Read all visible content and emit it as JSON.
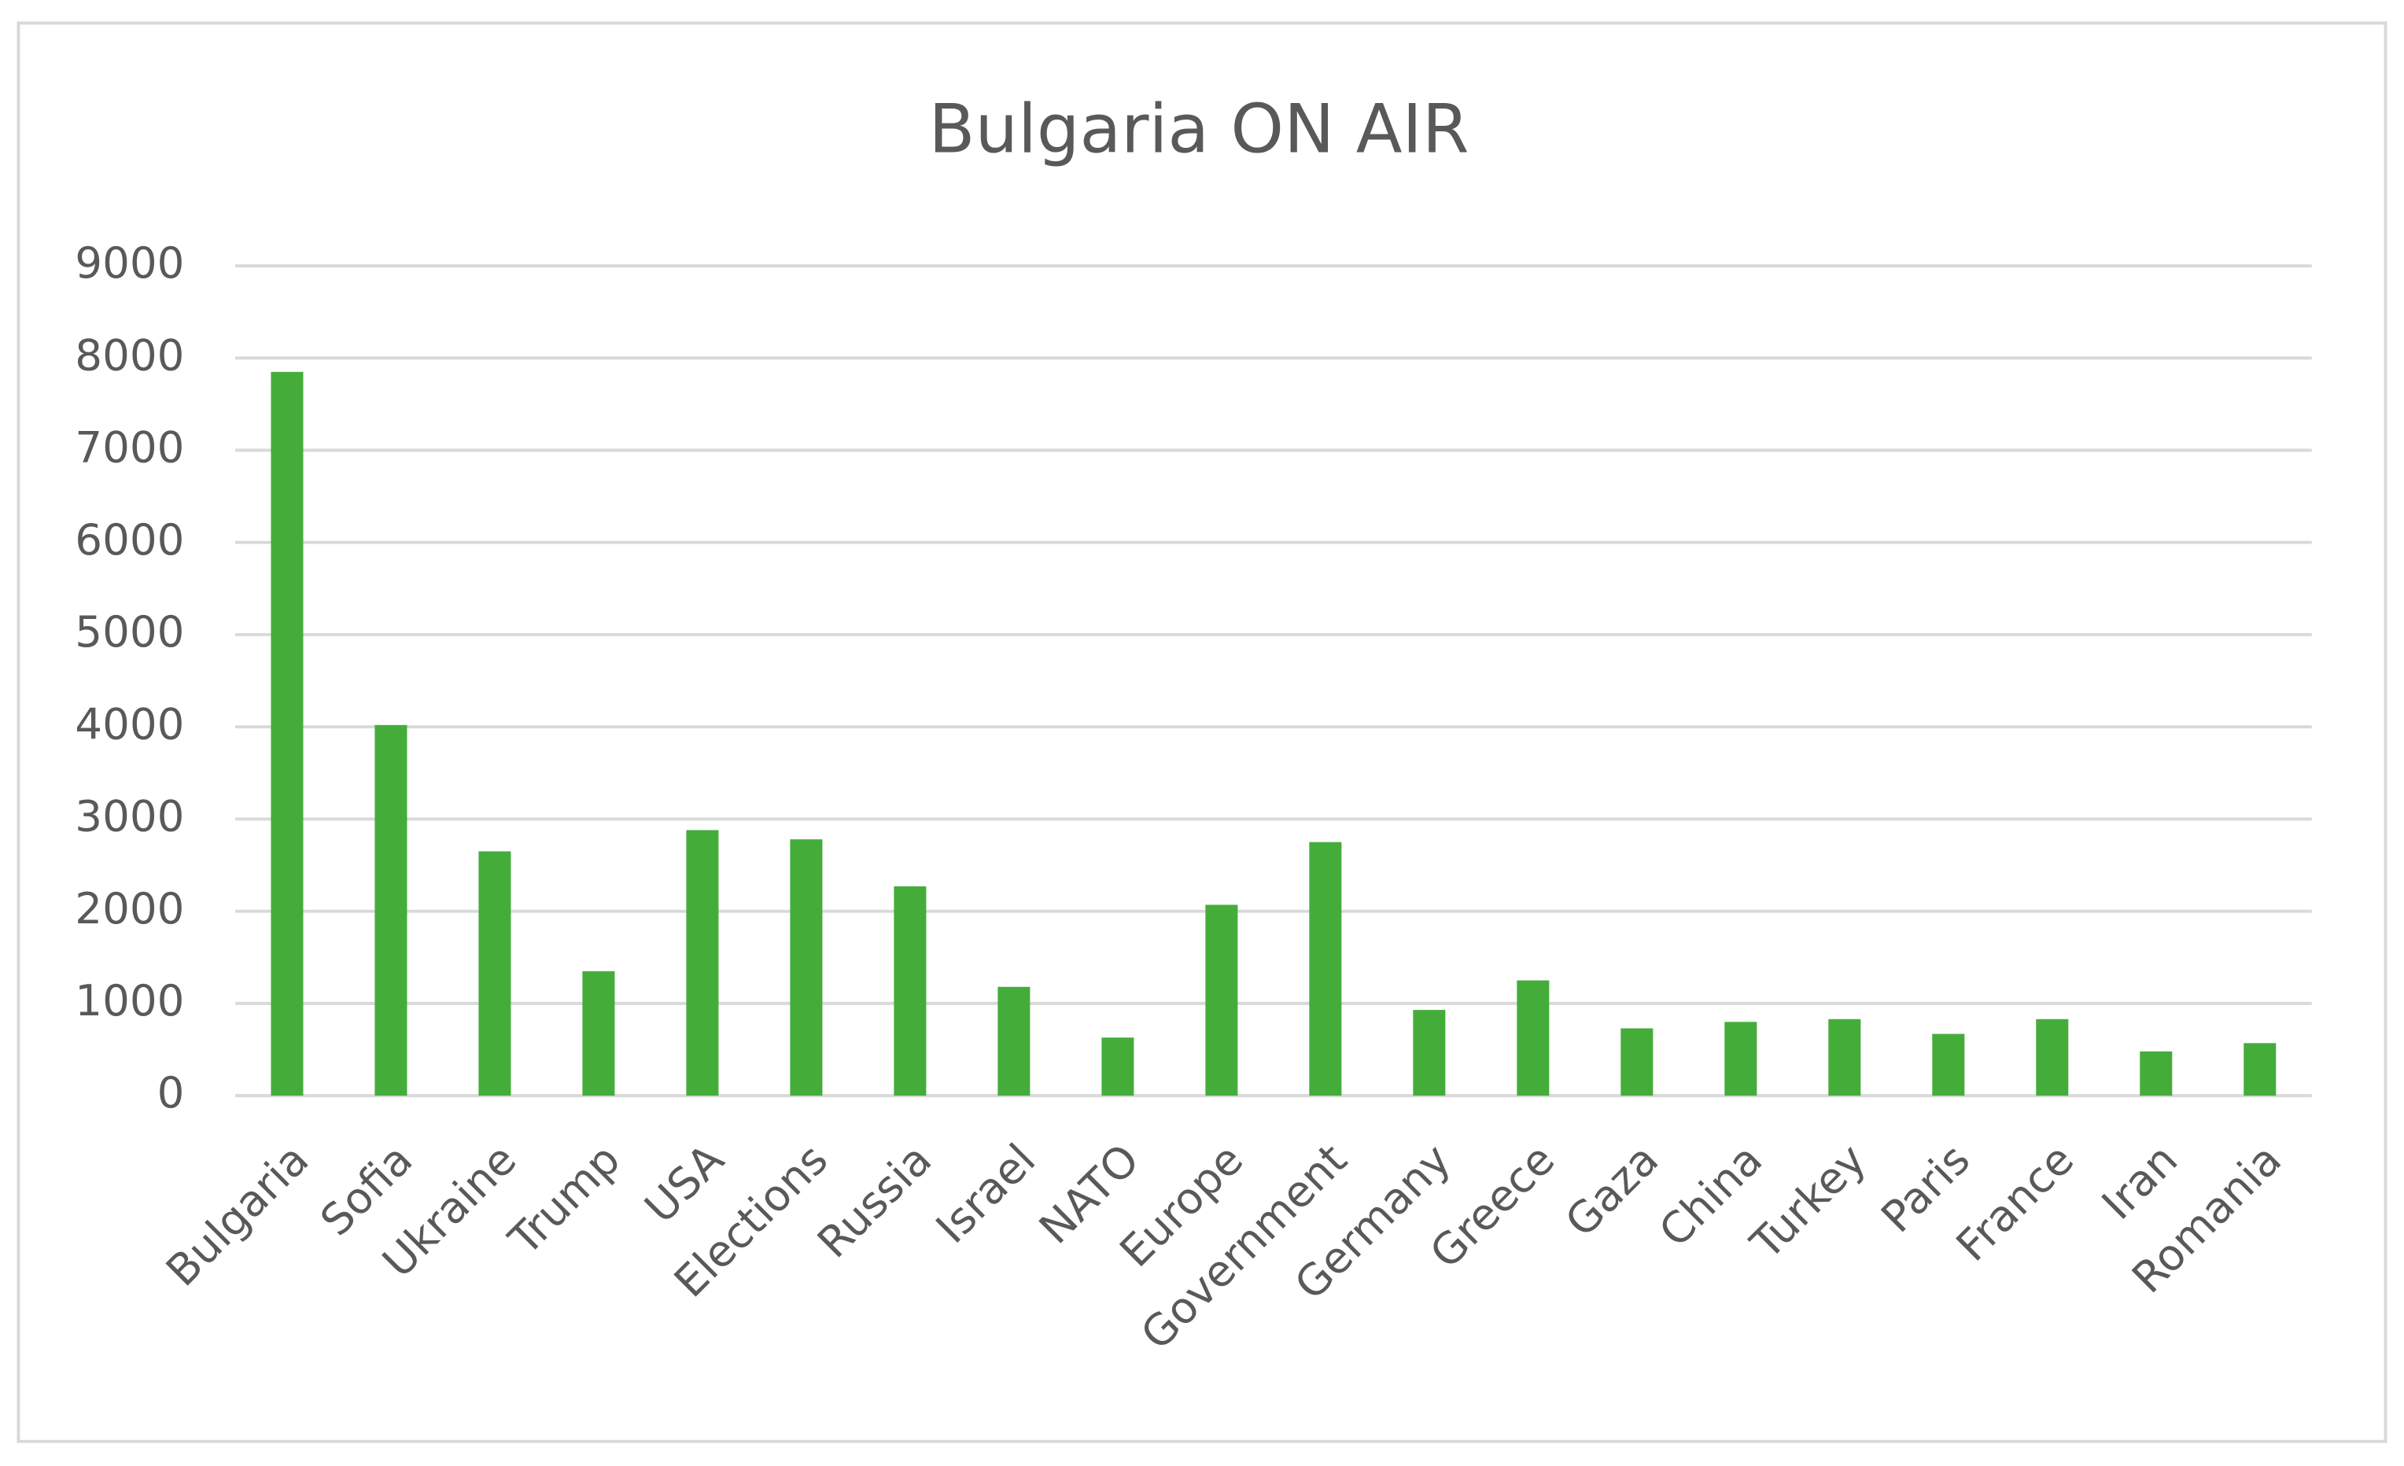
{
  "chart_data": {
    "type": "bar",
    "title": "Bulgaria ON AIR",
    "categories": [
      "Bulgaria",
      "Sofia",
      "Ukraine",
      "Trump",
      "USA",
      "Elections",
      "Russia",
      "Israel",
      "NATO",
      "Europe",
      "Government",
      "Germany",
      "Greece",
      "Gaza",
      "China",
      "Turkey",
      "Paris",
      "France",
      "Iran",
      "Romania"
    ],
    "values": [
      7850,
      4020,
      2650,
      1350,
      2880,
      2780,
      2270,
      1180,
      630,
      2070,
      2750,
      930,
      1250,
      730,
      800,
      830,
      670,
      830,
      480,
      570
    ],
    "color": "#44ad3a",
    "ylim": [
      0,
      9000
    ],
    "yticks": [
      0,
      1000,
      2000,
      3000,
      4000,
      5000,
      6000,
      7000,
      8000,
      9000
    ],
    "grid": true
  }
}
